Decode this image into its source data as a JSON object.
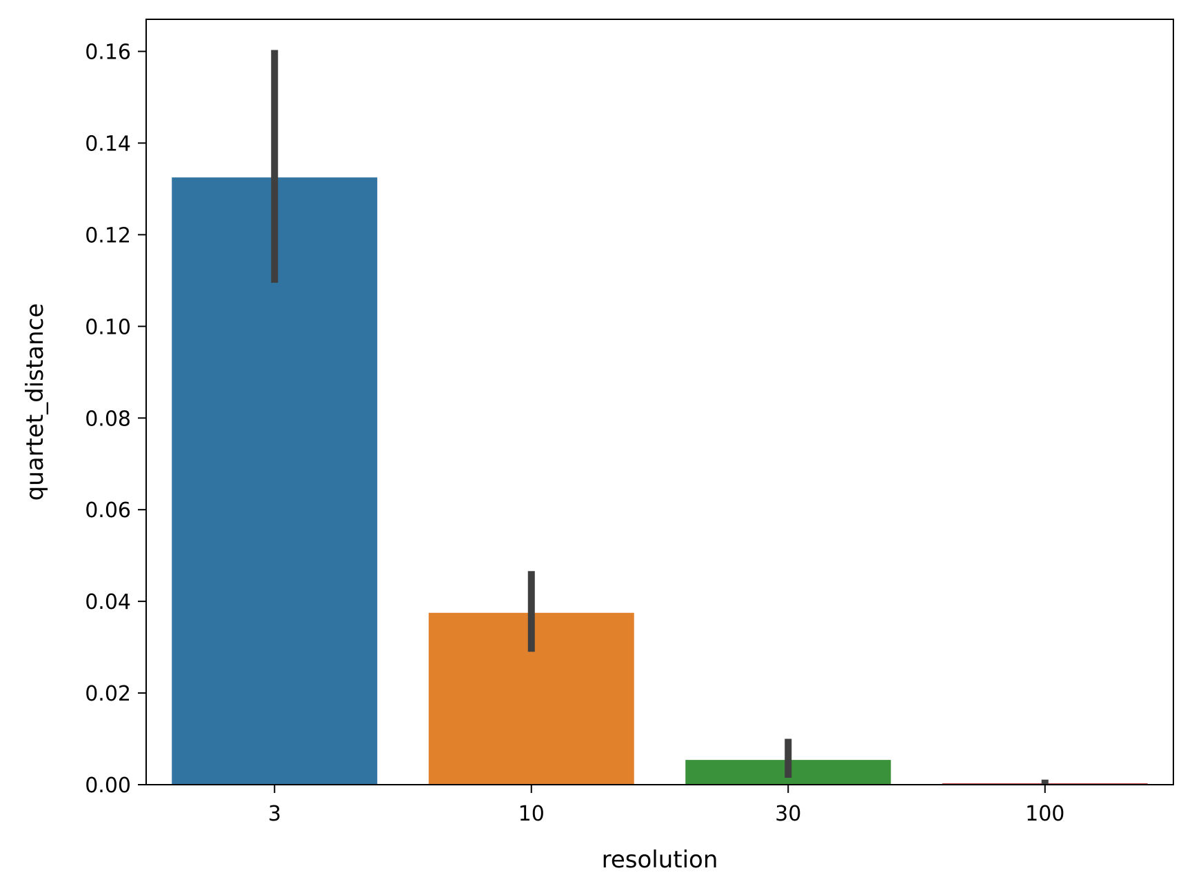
{
  "chart_data": {
    "type": "bar",
    "title": "",
    "xlabel": "resolution",
    "ylabel": "quartet_distance",
    "categories": [
      "3",
      "10",
      "30",
      "100"
    ],
    "values": [
      0.1325,
      0.0375,
      0.0054,
      0.0003
    ],
    "error_low": [
      0.1095,
      0.029,
      0.0015,
      0.0
    ],
    "error_high": [
      0.1603,
      0.0466,
      0.01,
      0.0011
    ],
    "ylim": [
      0,
      0.167
    ],
    "yticks": [
      0.0,
      0.02,
      0.04,
      0.06,
      0.08,
      0.1,
      0.12,
      0.14,
      0.16
    ],
    "ytick_labels": [
      "0.00",
      "0.02",
      "0.04",
      "0.06",
      "0.08",
      "0.10",
      "0.12",
      "0.14",
      "0.16"
    ],
    "grid": false,
    "colors": [
      "#3274a1",
      "#e1812c",
      "#3a923a",
      "#c03d3e"
    ],
    "error_color": "#3f3f3f"
  }
}
